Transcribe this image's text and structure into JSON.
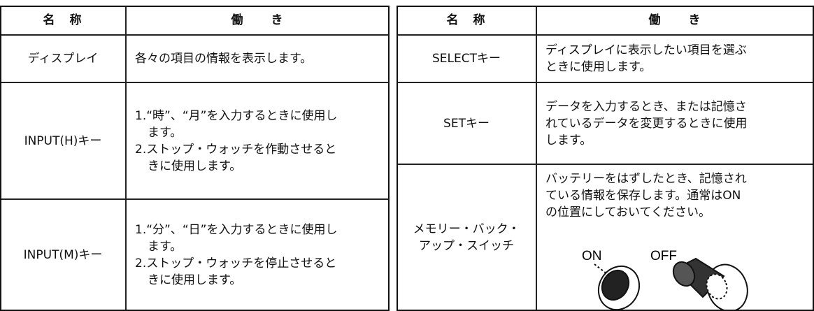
{
  "left_table": {
    "header": [
      "名　称",
      "働　　き"
    ],
    "rows": [
      [
        [
          "ディスプレイ"
        ],
        [
          "各々の項目の情報を表示します。"
        ]
      ],
      [
        [
          "INPUT(H)キー"
        ],
        [
          "1.“時”、“月”を入力するときに使用し",
          "ます。",
          "2.ストップ・ウォッチを作動させると",
          "きに使用します。"
        ]
      ],
      [
        [
          "INPUT(M)キー"
        ],
        [
          "1.“分”、“日”を入力するときに使用し",
          "ます。",
          "2.ストップ・ウォッチを停止させると",
          "きに使用します。"
        ]
      ]
    ]
  },
  "right_table": {
    "header": [
      "名　称",
      "働　　き"
    ],
    "rows": [
      [
        [
          "SELECTキー"
        ],
        [
          "ディスプレイに表示したい項目を選ぶ",
          "ときに使用します。"
        ]
      ],
      [
        [
          "SETキー"
        ],
        [
          "データを入力するとき、または記憶さ",
          "れているデータを変更するときに使用",
          "します。"
        ]
      ],
      [
        [
          "メモリー・バック・",
          "アップ・スイッチ"
        ],
        [
          "バッテリーをはずしたとき、記憶され",
          "ている情報を保存します。通常はON",
          "の位置にしておいてください。"
        ]
      ]
    ],
    "switch_labels": [
      "ON",
      "OFF"
    ]
  }
}
